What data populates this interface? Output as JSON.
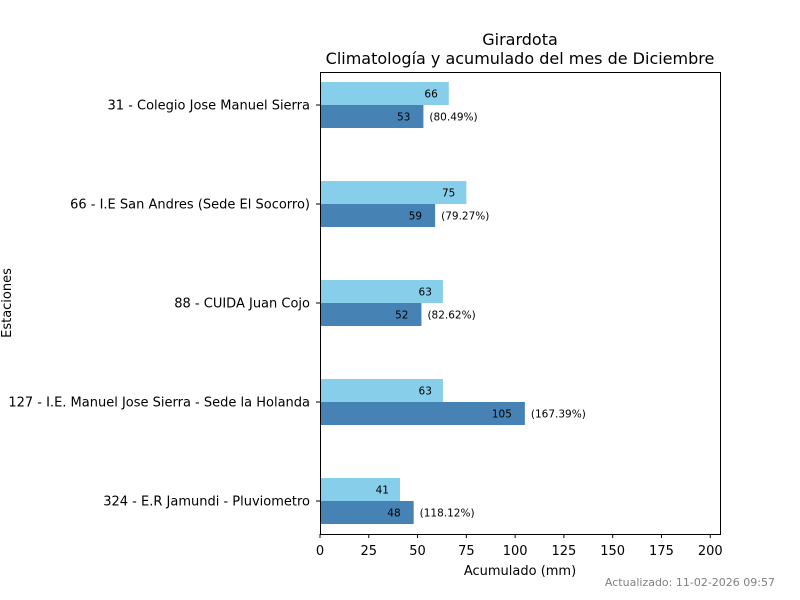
{
  "chart_data": {
    "type": "bar",
    "orientation": "horizontal",
    "title": "Girardota",
    "subtitle": "Climatología y acumulado del mes de Diciembre",
    "xlabel": "Acumulado (mm)",
    "ylabel": "Estaciones",
    "xlim": [
      0,
      205
    ],
    "xticks": [
      0,
      25,
      50,
      75,
      100,
      125,
      150,
      175,
      200
    ],
    "grid": false,
    "categories": [
      "31 - Colegio Jose Manuel Sierra",
      "66 - I.E San Andres (Sede El Socorro)",
      "88 - CUIDA Juan Cojo",
      "127 - I.E. Manuel Jose Sierra - Sede la Holanda",
      "324 - E.R Jamundi - Pluviometro"
    ],
    "series": [
      {
        "name": "Climatología",
        "color": "#87ceeb",
        "values": [
          66,
          75,
          63,
          63,
          41
        ],
        "labels": [
          "66",
          "75",
          "63",
          "63",
          "41"
        ]
      },
      {
        "name": "Acumulado",
        "color": "#4682b4",
        "values": [
          53,
          59,
          52,
          105,
          48
        ],
        "labels": [
          "53",
          "59",
          "52",
          "105",
          "48"
        ],
        "percent_labels": [
          "(80.49%)",
          "(79.27%)",
          "(82.62%)",
          "(167.39%)",
          "(118.12%)"
        ]
      }
    ]
  },
  "footer": {
    "updated": "Actualizado: 11-02-2026 09:57"
  }
}
